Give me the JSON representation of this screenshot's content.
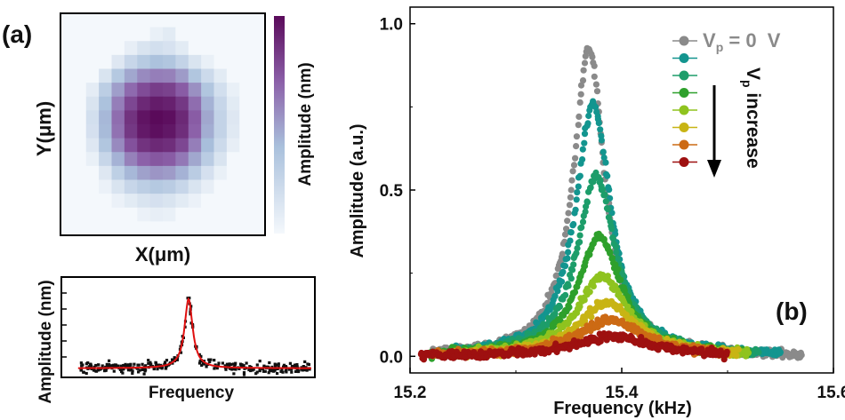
{
  "chart_data": [
    {
      "type": "heatmap",
      "panel_label": "(a)",
      "xlabel": "X(μm)",
      "ylabel": "Y(μm)",
      "colorbar_label": "Amplitude (nm)",
      "colormap": [
        "#f4f8fc",
        "#a9c0dc",
        "#8b5fa8",
        "#5a0a5a"
      ],
      "grid_size": 16,
      "values": [
        [
          0,
          0,
          0,
          0,
          0,
          0,
          0,
          0,
          0,
          0,
          0,
          0,
          0,
          0,
          0,
          0
        ],
        [
          0,
          0,
          0,
          0,
          0,
          0,
          0,
          0.05,
          0.08,
          0,
          0,
          0,
          0,
          0,
          0,
          0
        ],
        [
          0,
          0,
          0,
          0,
          0,
          0.06,
          0.12,
          0.15,
          0.13,
          0.08,
          0,
          0,
          0,
          0,
          0,
          0
        ],
        [
          0,
          0,
          0,
          0,
          0.1,
          0.2,
          0.27,
          0.32,
          0.3,
          0.22,
          0.12,
          0.05,
          0,
          0,
          0,
          0
        ],
        [
          0,
          0,
          0,
          0.12,
          0.28,
          0.42,
          0.52,
          0.56,
          0.55,
          0.46,
          0.3,
          0.18,
          0.08,
          0,
          0,
          0
        ],
        [
          0,
          0,
          0.07,
          0.25,
          0.45,
          0.63,
          0.74,
          0.8,
          0.78,
          0.68,
          0.5,
          0.3,
          0.15,
          0.05,
          0,
          0
        ],
        [
          0,
          0,
          0.12,
          0.32,
          0.56,
          0.76,
          0.88,
          0.93,
          0.91,
          0.82,
          0.62,
          0.38,
          0.2,
          0.08,
          0,
          0
        ],
        [
          0,
          0,
          0.15,
          0.36,
          0.62,
          0.84,
          0.96,
          1.0,
          0.98,
          0.88,
          0.68,
          0.42,
          0.22,
          0.1,
          0,
          0
        ],
        [
          0,
          0,
          0.14,
          0.35,
          0.6,
          0.82,
          0.94,
          0.98,
          0.95,
          0.86,
          0.66,
          0.4,
          0.22,
          0.09,
          0,
          0
        ],
        [
          0,
          0,
          0.1,
          0.3,
          0.52,
          0.72,
          0.84,
          0.88,
          0.86,
          0.76,
          0.56,
          0.34,
          0.18,
          0.06,
          0,
          0
        ],
        [
          0,
          0,
          0.05,
          0.2,
          0.38,
          0.55,
          0.66,
          0.7,
          0.68,
          0.58,
          0.42,
          0.26,
          0.12,
          0,
          0,
          0
        ],
        [
          0,
          0,
          0,
          0.1,
          0.24,
          0.36,
          0.44,
          0.48,
          0.46,
          0.38,
          0.26,
          0.14,
          0.05,
          0,
          0,
          0
        ],
        [
          0,
          0,
          0,
          0.04,
          0.12,
          0.2,
          0.25,
          0.28,
          0.26,
          0.2,
          0.12,
          0.06,
          0,
          0,
          0,
          0
        ],
        [
          0,
          0,
          0,
          0,
          0.04,
          0.08,
          0.12,
          0.14,
          0.12,
          0.08,
          0.04,
          0,
          0,
          0,
          0,
          0
        ],
        [
          0,
          0,
          0,
          0,
          0,
          0,
          0.04,
          0.06,
          0.05,
          0,
          0,
          0,
          0,
          0,
          0,
          0
        ],
        [
          0,
          0,
          0,
          0,
          0,
          0,
          0,
          0,
          0,
          0,
          0,
          0,
          0,
          0,
          0,
          0
        ]
      ]
    },
    {
      "type": "scatter",
      "xlabel": "Frequency",
      "ylabel": "Amplitude (nm)",
      "x_range": [
        0,
        1
      ],
      "y_range": [
        0,
        1
      ],
      "center": 0.5,
      "width": 0.02,
      "peak": 0.75,
      "baseline": 0.07,
      "n_points": 330,
      "point_color": "#111111",
      "fit_color": "#e01010"
    },
    {
      "type": "scatter",
      "panel_label": "(b)",
      "xlabel": "Frequency (kHz)",
      "ylabel": "Amplitude (a.u.)",
      "xlim": [
        15.2,
        15.6
      ],
      "ylim": [
        -0.05,
        1.05
      ],
      "x_ticks": [
        "15.2",
        "15.4",
        "15.6"
      ],
      "y_ticks": [
        "0.0",
        "0.5",
        "1.0"
      ],
      "x_tick_values": [
        15.2,
        15.4,
        15.6
      ],
      "y_tick_values": [
        0.0,
        0.5,
        1.0
      ],
      "legend_first_label": "V",
      "legend_first_sub": "p",
      "legend_first_suffix": " = 0  V",
      "arrow_text_main": "V",
      "arrow_text_sub": "p",
      "arrow_text_rest": " increase",
      "legend_placement": "top-right",
      "series": [
        {
          "color": "#8a8a8a",
          "x_start": 15.22,
          "x_end": 15.57,
          "center": 15.369,
          "width": 0.018,
          "peak": 0.93
        },
        {
          "color": "#13958f",
          "x_start": 15.24,
          "x_end": 15.55,
          "center": 15.373,
          "width": 0.02,
          "peak": 0.76
        },
        {
          "color": "#1d9d6a",
          "x_start": 15.24,
          "x_end": 15.53,
          "center": 15.376,
          "width": 0.022,
          "peak": 0.54
        },
        {
          "color": "#2ea02c",
          "x_start": 15.22,
          "x_end": 15.52,
          "center": 15.379,
          "width": 0.025,
          "peak": 0.36
        },
        {
          "color": "#8fc31f",
          "x_start": 15.25,
          "x_end": 15.52,
          "center": 15.382,
          "width": 0.029,
          "peak": 0.24
        },
        {
          "color": "#c8b414",
          "x_start": 15.24,
          "x_end": 15.51,
          "center": 15.386,
          "width": 0.033,
          "peak": 0.16
        },
        {
          "color": "#cc6a14",
          "x_start": 15.22,
          "x_end": 15.5,
          "center": 15.389,
          "width": 0.038,
          "peak": 0.11
        },
        {
          "color": "#9e1010",
          "x_start": 15.21,
          "x_end": 15.5,
          "center": 15.392,
          "width": 0.044,
          "peak": 0.06
        }
      ]
    }
  ]
}
